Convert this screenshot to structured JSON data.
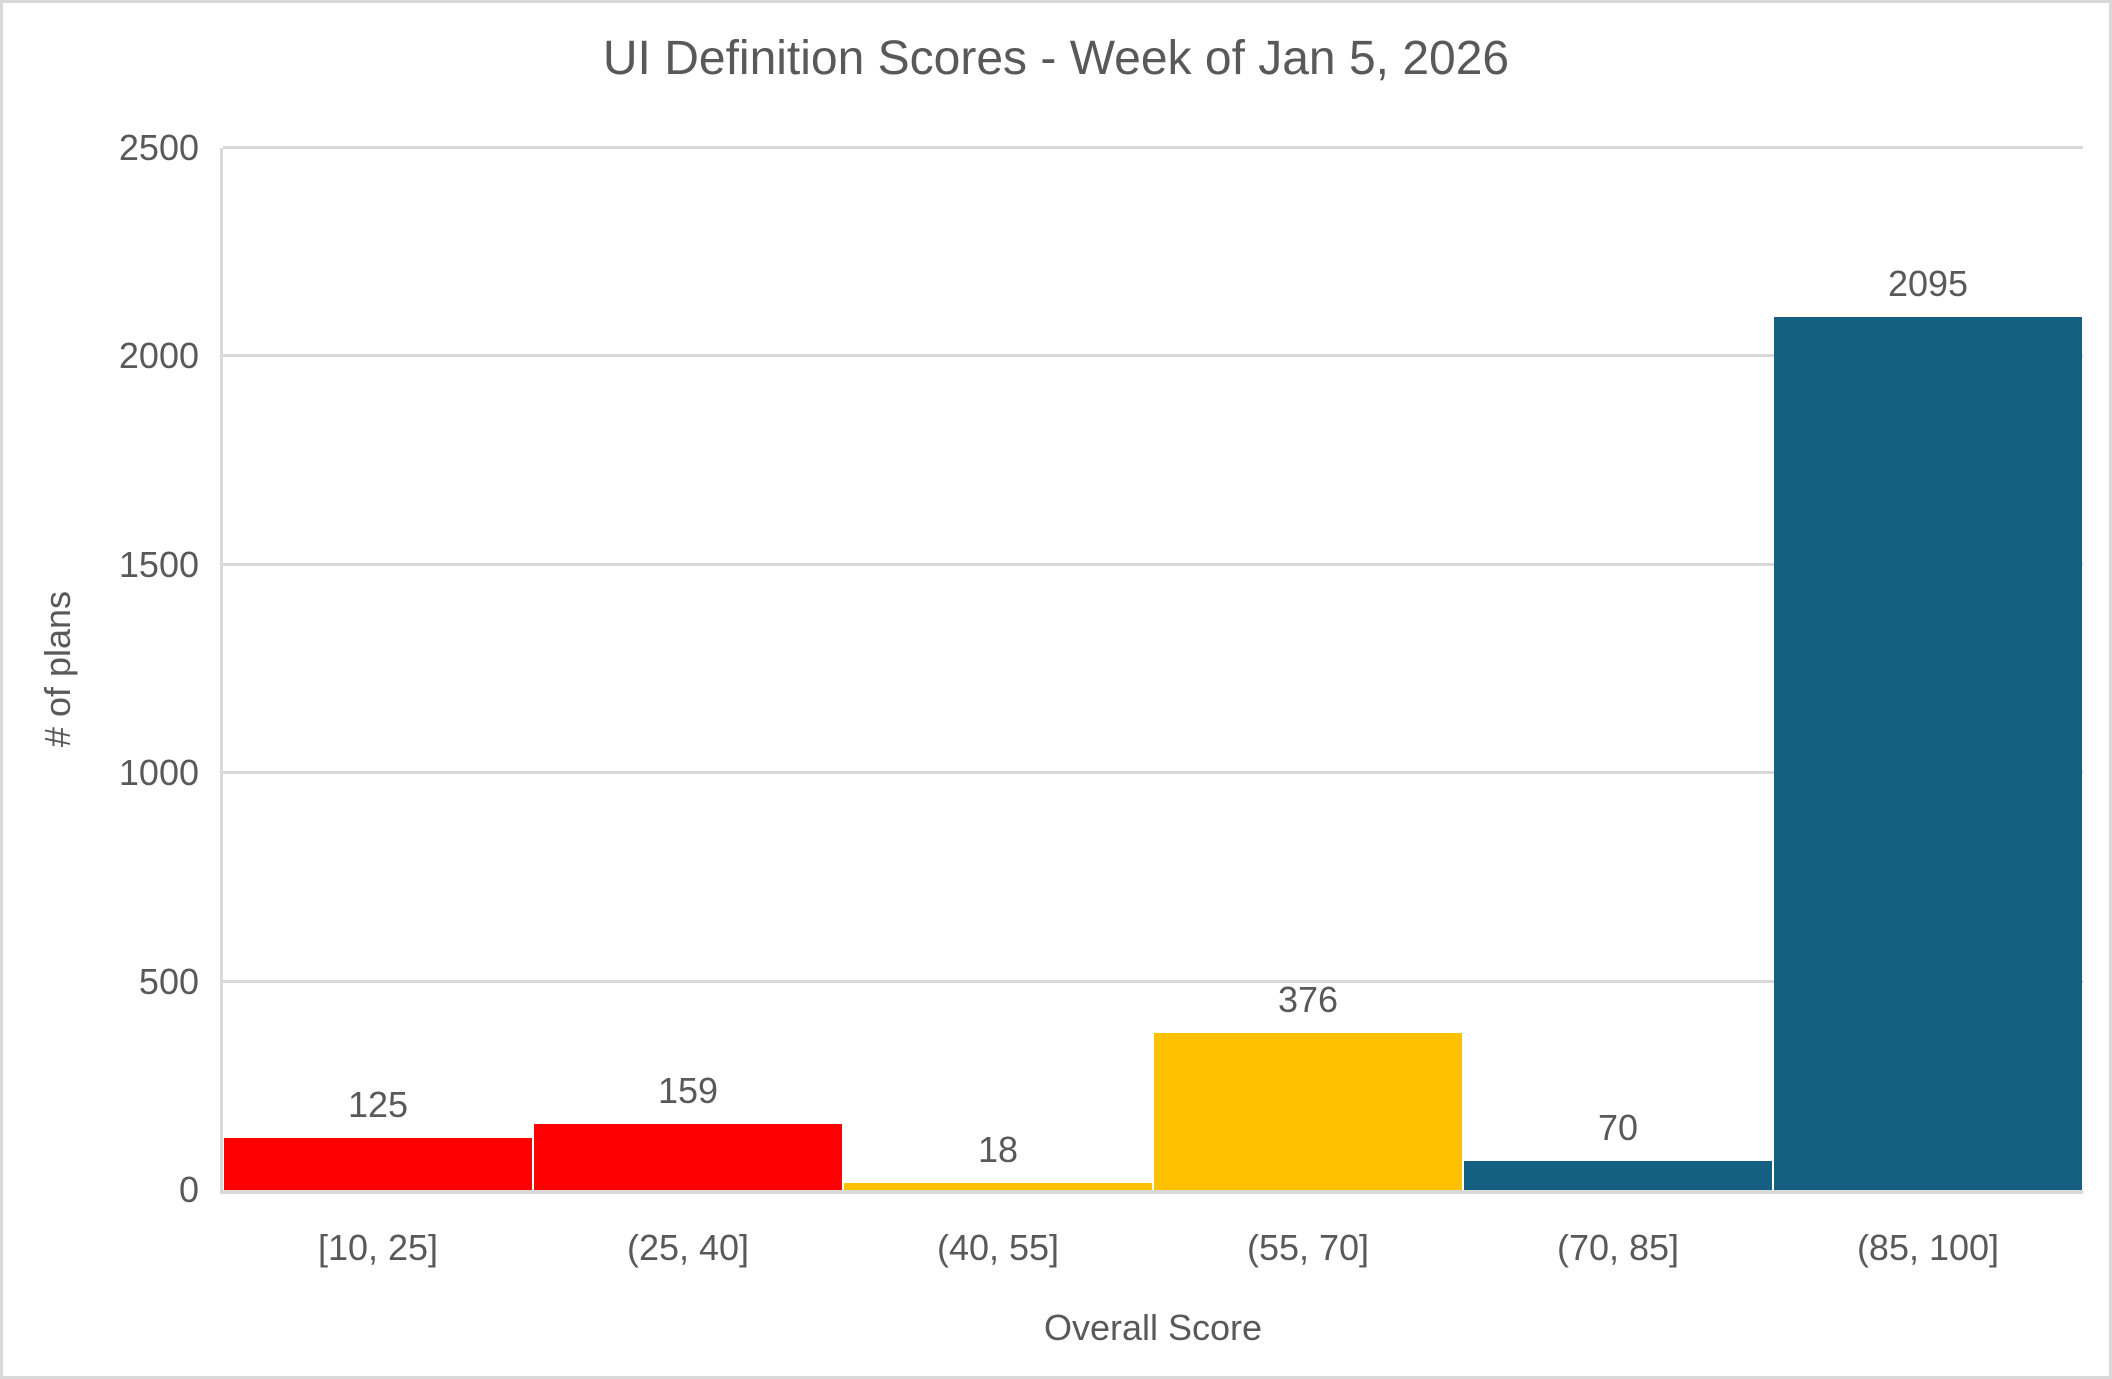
{
  "chart_data": {
    "type": "bar",
    "title": "UI Definition Scores - Week of Jan 5, 2026",
    "xlabel": "Overall Score",
    "ylabel": "# of plans",
    "categories": [
      "[10, 25]",
      "(25, 40]",
      "(40, 55]",
      "(55, 70]",
      "(70, 85]",
      "(85, 100]"
    ],
    "values": [
      125,
      159,
      18,
      376,
      70,
      2095
    ],
    "data_labels": [
      "125",
      "159",
      "18",
      "376",
      "70",
      "2095"
    ],
    "bar_colors": [
      "#FF0000",
      "#FF0000",
      "#FFC000",
      "#FFC000",
      "#156082",
      "#156082"
    ],
    "ylim": [
      0,
      2500
    ],
    "y_ticks": [
      0,
      500,
      1000,
      1500,
      2000,
      2500
    ],
    "y_tick_labels": [
      "0",
      "500",
      "1000",
      "1500",
      "2000",
      "2500"
    ],
    "grid": "horizontal",
    "legend_position": "none",
    "gap_width_percent": 0,
    "style": {
      "text_color": "#595959",
      "gridline_color": "#D9D9D9",
      "axis_line_color": "#D9D9D9",
      "frame_border_color": "#D9D9D9",
      "background_color": "#FFFFFF"
    }
  }
}
